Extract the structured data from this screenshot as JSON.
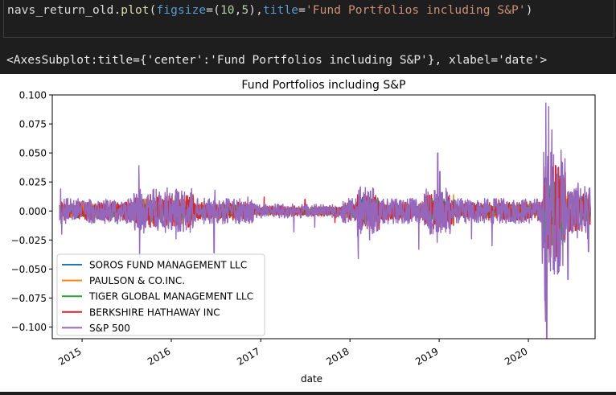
{
  "code_cell": {
    "code_tokens": [
      {
        "text": "navs_return_old.",
        "cls": "tok-var"
      },
      {
        "text": "plot",
        "cls": "tok-fn"
      },
      {
        "text": "(",
        "cls": "tok-var"
      },
      {
        "text": "figsize",
        "cls": "tok-kw"
      },
      {
        "text": "=(",
        "cls": "tok-var"
      },
      {
        "text": "10",
        "cls": "tok-num"
      },
      {
        "text": ",",
        "cls": "tok-var"
      },
      {
        "text": "5",
        "cls": "tok-num"
      },
      {
        "text": "),",
        "cls": "tok-var"
      },
      {
        "text": "title",
        "cls": "tok-kw"
      },
      {
        "text": "=",
        "cls": "tok-var"
      },
      {
        "text": "'Fund Portfolios including S&P'",
        "cls": "tok-str"
      },
      {
        "text": ")",
        "cls": "tok-var"
      }
    ]
  },
  "output_text": "<AxesSubplot:title={'center':'Fund Portfolios including S&P'}, xlabel='date'>",
  "chart_data": {
    "type": "line",
    "title": "Fund Portfolios including S&P",
    "xlabel": "date",
    "ylabel": "",
    "x_range": [
      "2014-09-01",
      "2020-09-30"
    ],
    "ylim": [
      -0.11,
      0.1
    ],
    "yticks": [
      0.1,
      0.075,
      0.05,
      0.025,
      0.0,
      -0.025,
      -0.05,
      -0.075,
      -0.1
    ],
    "ytick_labels": [
      "0.100",
      "0.075",
      "0.050",
      "0.025",
      "0.000",
      "−0.025",
      "−0.050",
      "−0.075",
      "−0.100"
    ],
    "xticks": [
      2015,
      2016,
      2017,
      2018,
      2019,
      2020
    ],
    "xtick_labels": [
      "2015",
      "2016",
      "2017",
      "2018",
      "2019",
      "2020"
    ],
    "grid": false,
    "legend_position": "lower-left",
    "series": [
      {
        "name": "SOROS FUND MANAGEMENT LLC",
        "color": "#1f77b4",
        "spikes": [
          [
            "2014-10-01",
            -0.004
          ],
          [
            "2015-06-01",
            0.005
          ],
          [
            "2016-02-01",
            -0.006
          ],
          [
            "2017-03-01",
            0.004
          ],
          [
            "2018-02-01",
            -0.008
          ],
          [
            "2019-01-01",
            0.006
          ],
          [
            "2020-03-01",
            -0.01
          ]
        ]
      },
      {
        "name": "PAULSON & CO.INC.",
        "color": "#ff7f0e",
        "spikes": [
          [
            "2015-08-01",
            -0.006
          ],
          [
            "2016-06-01",
            0.005
          ],
          [
            "2017-09-01",
            -0.004
          ],
          [
            "2019-03-01",
            0.014
          ],
          [
            "2019-09-01",
            0.01
          ],
          [
            "2020-03-01",
            -0.01
          ]
        ]
      },
      {
        "name": "TIGER GLOBAL MANAGEMENT LLC",
        "color": "#2ca02c",
        "spikes": [
          [
            "2015-03-01",
            0.004
          ],
          [
            "2016-11-01",
            -0.005
          ],
          [
            "2018-05-01",
            0.005
          ],
          [
            "2020-04-01",
            0.006
          ]
        ]
      },
      {
        "name": "BERKSHIRE HATHAWAY INC",
        "color": "#d62728",
        "spikes": [
          [
            "2015-05-01",
            0.006
          ],
          [
            "2016-03-01",
            -0.01
          ],
          [
            "2016-12-01",
            -0.008
          ],
          [
            "2017-01-15",
            0.012
          ],
          [
            "2017-07-01",
            0.01
          ],
          [
            "2017-11-01",
            -0.01
          ],
          [
            "2018-02-01",
            0.014
          ],
          [
            "2018-09-01",
            -0.008
          ],
          [
            "2019-01-01",
            0.012
          ],
          [
            "2019-08-01",
            -0.008
          ],
          [
            "2020-03-01",
            0.01
          ],
          [
            "2020-07-01",
            -0.006
          ]
        ]
      },
      {
        "name": "S&P 500",
        "color": "#9467bd",
        "spikes": [
          [
            "2014-10-05",
            0.019
          ],
          [
            "2014-10-10",
            -0.02
          ],
          [
            "2015-08-21",
            0.039
          ],
          [
            "2015-08-24",
            -0.04
          ],
          [
            "2015-12-15",
            0.02
          ],
          [
            "2016-01-20",
            -0.024
          ],
          [
            "2016-06-24",
            -0.036
          ],
          [
            "2016-06-28",
            0.018
          ],
          [
            "2016-11-09",
            0.012
          ],
          [
            "2017-05-17",
            -0.018
          ],
          [
            "2017-08-10",
            -0.014
          ],
          [
            "2018-02-02",
            -0.022
          ],
          [
            "2018-02-05",
            -0.041
          ],
          [
            "2018-02-06",
            0.018
          ],
          [
            "2018-03-22",
            -0.025
          ],
          [
            "2018-10-10",
            -0.033
          ],
          [
            "2018-12-24",
            -0.027
          ],
          [
            "2018-12-26",
            0.05
          ],
          [
            "2019-01-04",
            0.034
          ],
          [
            "2019-05-13",
            -0.024
          ],
          [
            "2019-08-05",
            -0.03
          ],
          [
            "2020-02-27",
            -0.045
          ],
          [
            "2020-03-09",
            -0.077
          ],
          [
            "2020-03-12",
            -0.095
          ],
          [
            "2020-03-13",
            0.093
          ],
          [
            "2020-03-16",
            -0.12
          ],
          [
            "2020-03-24",
            0.09
          ],
          [
            "2020-04-06",
            0.07
          ],
          [
            "2020-06-11",
            -0.059
          ],
          [
            "2020-09-03",
            -0.035
          ],
          [
            "2020-09-08",
            0.02
          ]
        ]
      }
    ]
  }
}
